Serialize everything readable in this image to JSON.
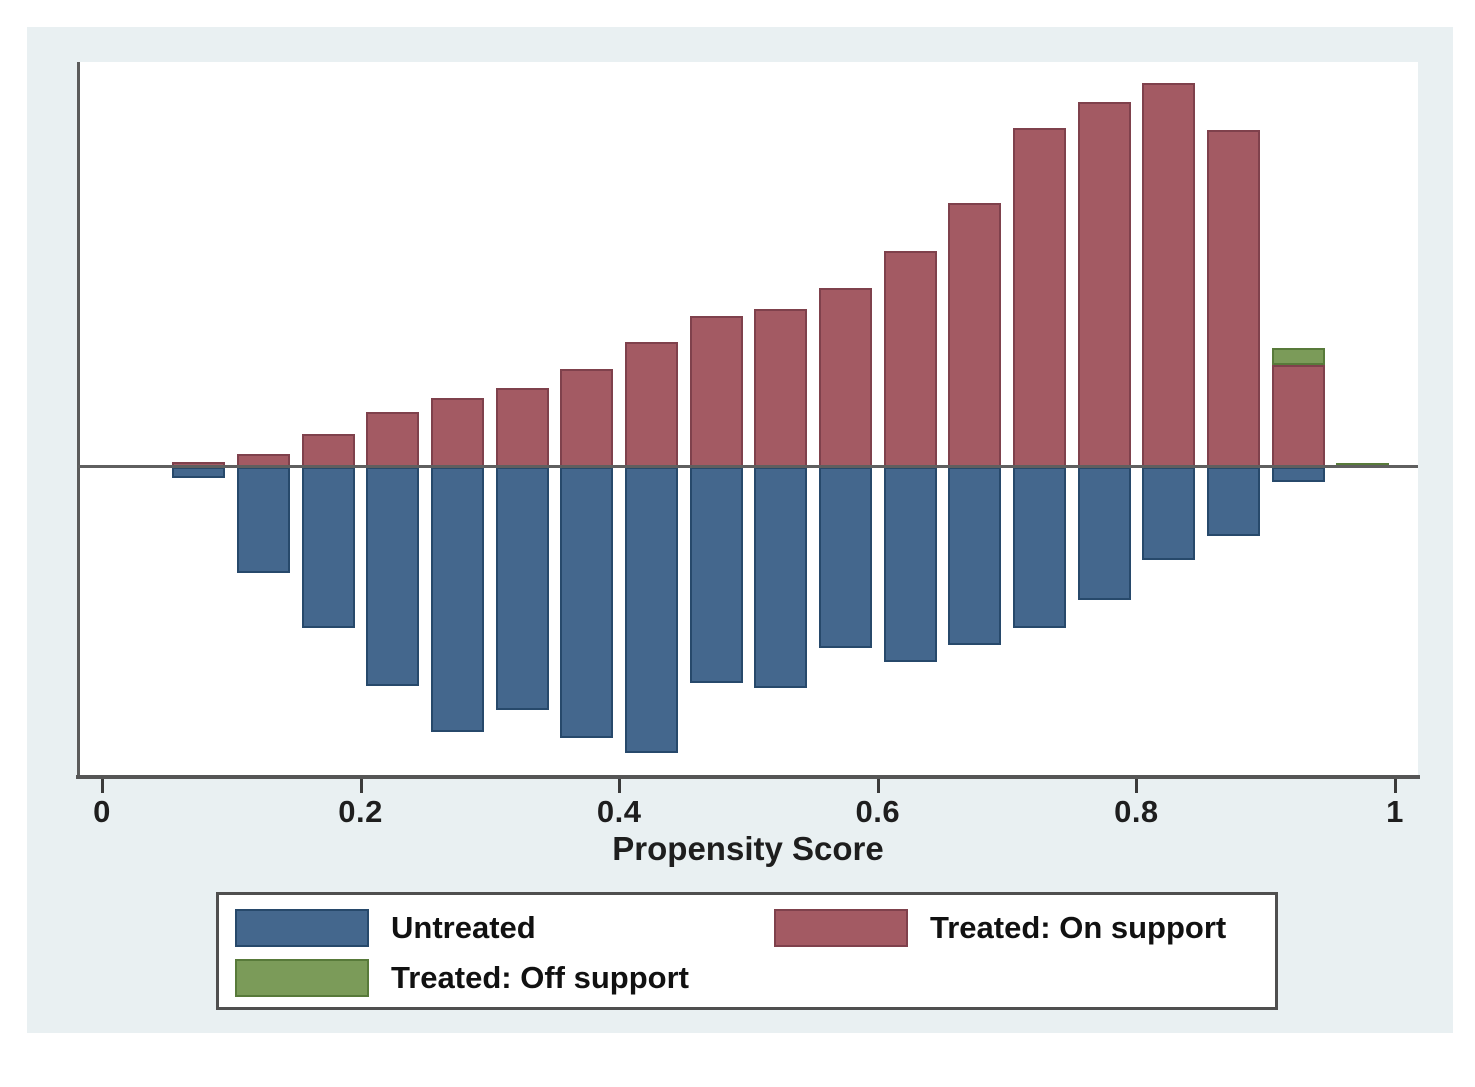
{
  "figure": {
    "x_axis_label": "Propensity Score",
    "x_tick_labels": [
      "0",
      "0.2",
      "0.4",
      "0.6",
      "0.8",
      "1"
    ],
    "background_color": "#e9f0f2",
    "plot_background": "#ffffff"
  },
  "legend": {
    "items": [
      {
        "id": "untreated",
        "label": "Untreated",
        "fill": "#44678d",
        "edge": "#27496b"
      },
      {
        "id": "treated-on",
        "label": "Treated: On support",
        "fill": "#a35a63",
        "edge": "#7f414c"
      },
      {
        "id": "treated-off",
        "label": "Treated: Off support",
        "fill": "#7b9b59",
        "edge": "#587a3a"
      }
    ]
  },
  "chart_data": {
    "type": "bar",
    "subtype": "mirrored propensity-score histogram (Stata psgraph style): treated above baseline, untreated below",
    "title": "",
    "xlabel": "Propensity Score",
    "ylabel": "",
    "x_ticks": [
      0,
      0.2,
      0.4,
      0.6,
      0.8,
      1
    ],
    "xlim": [
      0,
      1.02
    ],
    "grid": false,
    "legend_position": "bottom",
    "bin_width": 0.05,
    "bins_start": [
      0.05,
      0.1,
      0.15,
      0.2,
      0.25,
      0.3,
      0.35,
      0.4,
      0.45,
      0.5,
      0.55,
      0.6,
      0.65,
      0.7,
      0.75,
      0.8,
      0.85,
      0.9,
      0.95
    ],
    "y_units": "relative frequency (y axis unlabeled in source figure; values are bar heights in source-image pixels)",
    "series": [
      {
        "name": "Treated: On support",
        "direction": "up",
        "color": "#a35a63",
        "values": [
          5,
          13,
          33,
          55,
          69,
          79,
          98,
          125,
          151,
          158,
          179,
          216,
          264,
          339,
          365,
          384,
          337,
          102,
          0
        ]
      },
      {
        "name": "Treated: Off support",
        "direction": "up",
        "stacked_on": "Treated: On support",
        "color": "#7b9b59",
        "values": [
          0,
          0,
          0,
          0,
          0,
          0,
          0,
          0,
          0,
          0,
          0,
          0,
          0,
          0,
          0,
          0,
          0,
          17,
          4
        ]
      },
      {
        "name": "Untreated",
        "direction": "down",
        "color": "#44678d",
        "values": [
          11,
          106,
          161,
          219,
          265,
          243,
          271,
          286,
          216,
          221,
          181,
          195,
          178,
          161,
          133,
          93,
          69,
          15,
          0
        ]
      }
    ]
  }
}
